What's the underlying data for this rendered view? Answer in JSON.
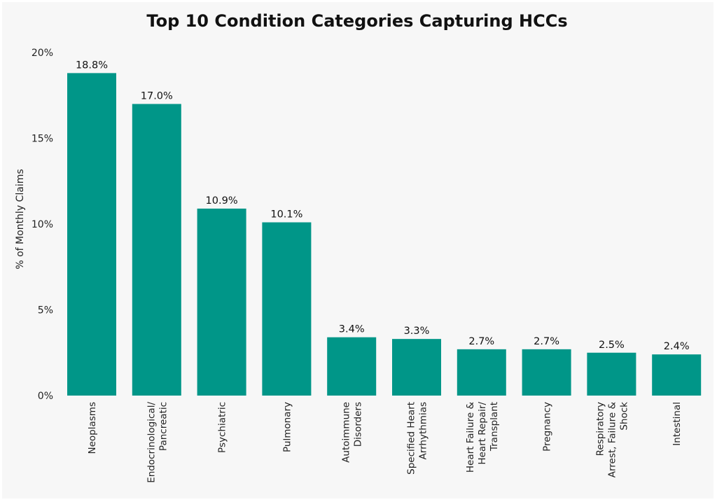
{
  "chart_data": {
    "type": "bar",
    "title": "Top 10 Condition Categories Capturing HCCs",
    "ylabel": "% of Monthly Claims",
    "xlabel": "",
    "ylim": [
      0,
      20
    ],
    "yticks": [
      "0%",
      "5%",
      "10%",
      "15%",
      "20%"
    ],
    "grid": false,
    "bar_color": "#009688",
    "categories": [
      [
        "Neoplasms"
      ],
      [
        "Endocrinological/",
        "Pancreatic"
      ],
      [
        "Psychiatric"
      ],
      [
        "Pulmonary"
      ],
      [
        "Autoimmune",
        "Disorders"
      ],
      [
        "Specified Heart",
        "Arrhythmias"
      ],
      [
        "Heart Failure &",
        "Heart Repair/",
        "Transplant"
      ],
      [
        "Pregnancy"
      ],
      [
        "Respiratory",
        "Arrest, Failure &",
        "Shock"
      ],
      [
        "Intestinal"
      ]
    ],
    "values": [
      18.8,
      17.0,
      10.9,
      10.1,
      3.4,
      3.3,
      2.7,
      2.7,
      2.5,
      2.4
    ],
    "data_labels": [
      "18.8%",
      "17.0%",
      "10.9%",
      "10.1%",
      "3.4%",
      "3.3%",
      "2.7%",
      "2.7%",
      "2.5%",
      "2.4%"
    ]
  }
}
